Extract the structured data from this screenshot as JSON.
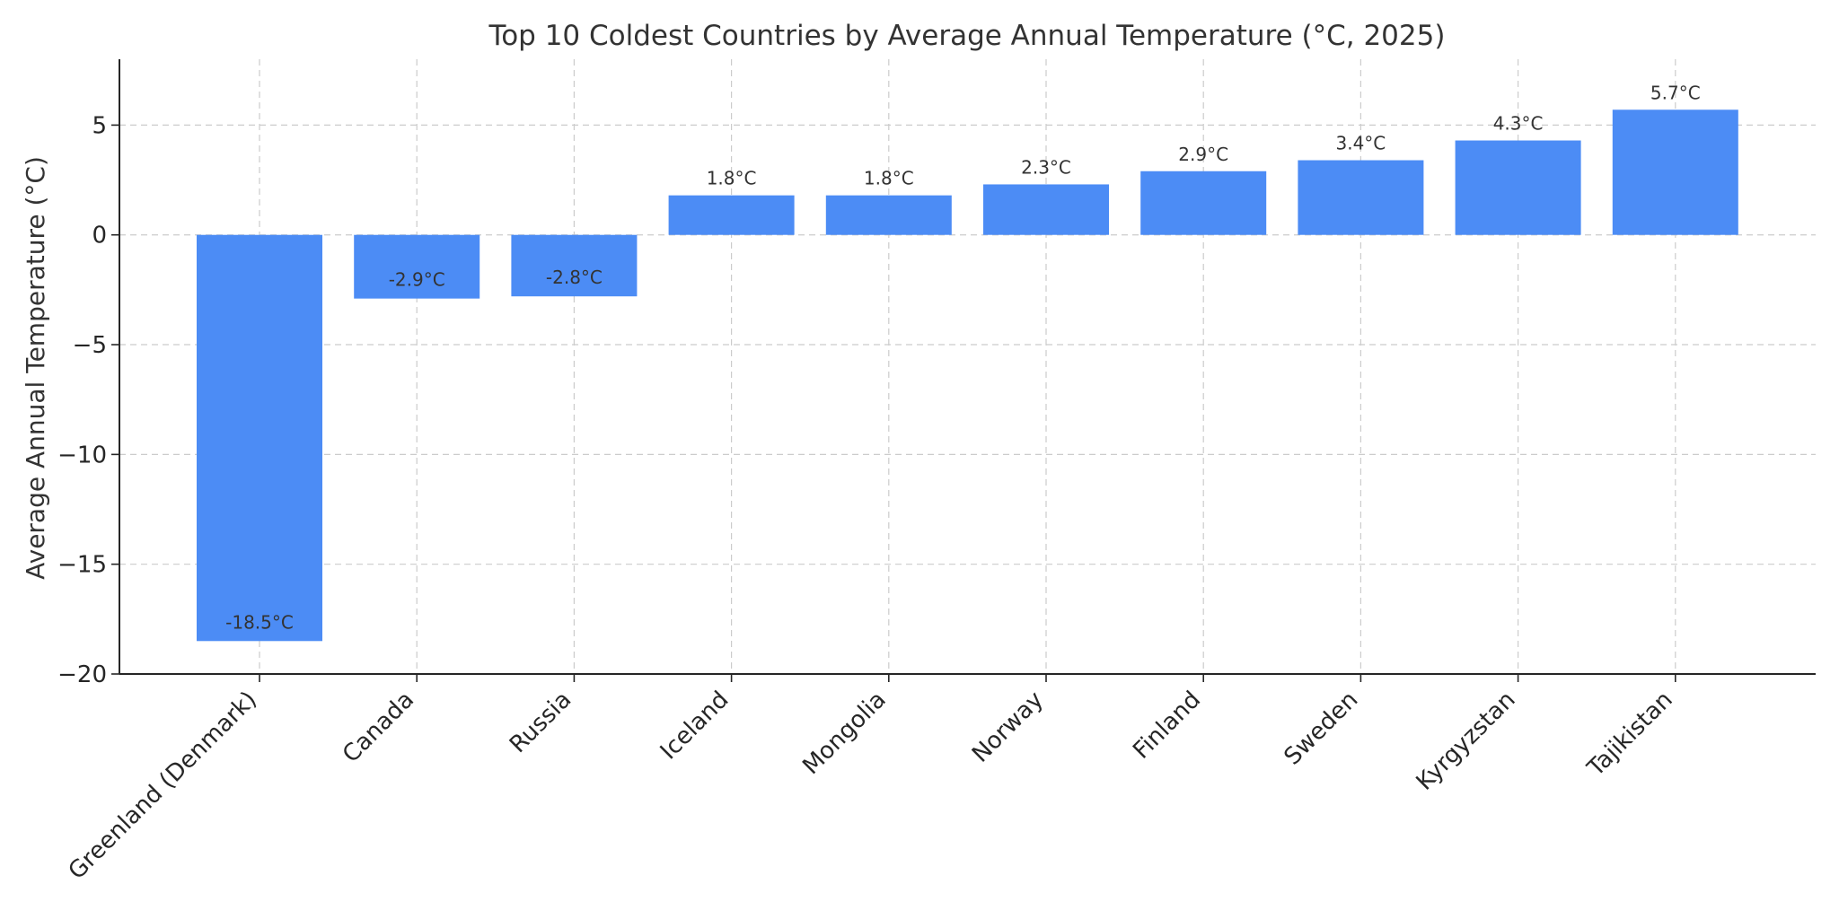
{
  "chart_data": {
    "type": "bar",
    "title": "Top 10 Coldest Countries by Average Annual Temperature (°C, 2025)",
    "xlabel": "",
    "ylabel": "Average Annual Temperature (°C)",
    "categories": [
      "Greenland (Denmark)",
      "Canada",
      "Russia",
      "Iceland",
      "Mongolia",
      "Norway",
      "Finland",
      "Sweden",
      "Kyrgyzstan",
      "Tajikistan"
    ],
    "values": [
      -18.5,
      -2.9,
      -2.8,
      1.8,
      1.8,
      2.3,
      2.9,
      3.4,
      4.3,
      5.7
    ],
    "data_labels": [
      "-18.5°C",
      "-2.9°C",
      "-2.8°C",
      "1.8°C",
      "1.8°C",
      "2.3°C",
      "2.9°C",
      "3.4°C",
      "4.3°C",
      "5.7°C"
    ],
    "ylim": [
      -20,
      8
    ],
    "yticks": [
      5,
      0,
      -5,
      -10,
      -15,
      -20
    ],
    "ytick_labels": [
      "5",
      "0",
      "−5",
      "−10",
      "−15",
      "−20"
    ],
    "grid": true,
    "bar_color": "#4c8cf5"
  }
}
